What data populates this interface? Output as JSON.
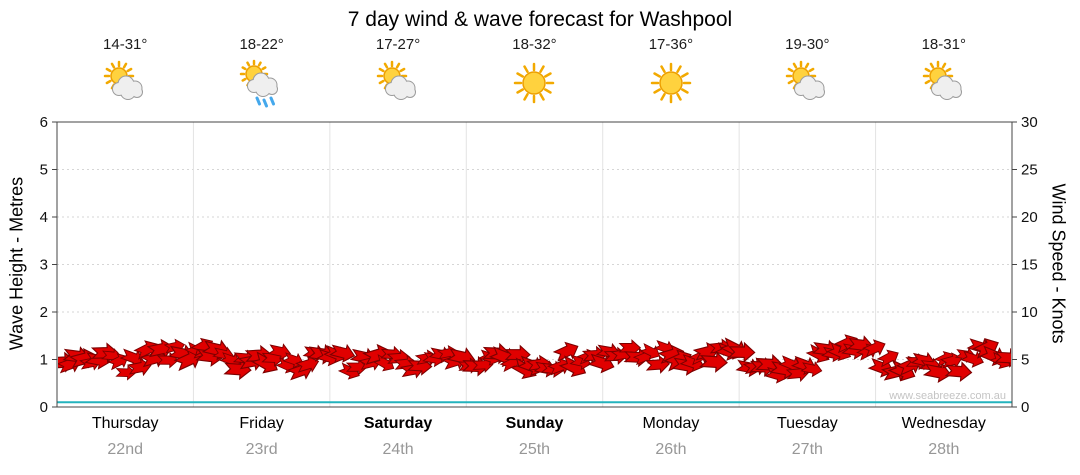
{
  "title": "7 day wind & wave forecast for Washpool",
  "watermark": "www.seabreeze.com.au",
  "axes": {
    "left_title": "Wave Height - Metres",
    "right_title": "Wind Speed - Knots",
    "left_ticks": [
      0,
      1,
      2,
      3,
      4,
      5,
      6
    ],
    "right_ticks": [
      0,
      5,
      10,
      15,
      20,
      25,
      30
    ]
  },
  "days": [
    {
      "name": "Thursday",
      "date": "22nd",
      "temp": "14-31°",
      "icon": "sun-cloud",
      "bold": false
    },
    {
      "name": "Friday",
      "date": "23rd",
      "temp": "18-22°",
      "icon": "sun-cloud-rain",
      "bold": false
    },
    {
      "name": "Saturday",
      "date": "24th",
      "temp": "17-27°",
      "icon": "sun-cloud",
      "bold": true
    },
    {
      "name": "Sunday",
      "date": "25th",
      "temp": "18-32°",
      "icon": "sun",
      "bold": true
    },
    {
      "name": "Monday",
      "date": "26th",
      "temp": "17-36°",
      "icon": "sun",
      "bold": false
    },
    {
      "name": "Tuesday",
      "date": "27th",
      "temp": "19-30°",
      "icon": "sun-cloud",
      "bold": false
    },
    {
      "name": "Wednesday",
      "date": "28th",
      "temp": "18-31°",
      "icon": "sun-cloud",
      "bold": false
    }
  ],
  "chart_data": {
    "type": "line",
    "title": "7 day wind & wave forecast for Washpool",
    "categories": [
      "Thursday 22nd",
      "Friday 23rd",
      "Saturday 24th",
      "Sunday 25th",
      "Monday 26th",
      "Tuesday 27th",
      "Wednesday 28th"
    ],
    "samples_per_day": 8,
    "y_left": {
      "label": "Wave Height - Metres",
      "range": [
        0,
        6
      ]
    },
    "y_right": {
      "label": "Wind Speed - Knots",
      "range": [
        0,
        30
      ]
    },
    "grid": true,
    "legend": "none",
    "series": [
      {
        "name": "Wind Speed",
        "unit": "knots",
        "axis": "right",
        "style": "red-wind-arrows",
        "values": [
          5.0,
          4.8,
          5.2,
          4.5,
          4.2,
          5.0,
          5.5,
          6.0,
          5.8,
          5.2,
          5.0,
          5.0,
          5.0,
          5.0,
          4.8,
          5.0,
          4.8,
          4.5,
          4.2,
          4.8,
          5.0,
          4.5,
          4.8,
          5.0,
          5.0,
          5.5,
          5.2,
          4.5,
          4.8,
          5.0,
          4.6,
          5.0,
          5.2,
          5.5,
          5.0,
          5.4,
          5.0,
          4.6,
          5.2,
          5.5,
          5.0,
          4.6,
          4.2,
          4.4,
          5.2,
          6.5,
          6.8,
          5.5,
          4.2,
          4.0,
          4.4,
          4.2,
          4.8,
          5.8,
          5.2,
          4.2
        ]
      },
      {
        "name": "Wave Height",
        "unit": "metres",
        "axis": "left",
        "style": "teal-line",
        "constant_value": 0.1
      }
    ]
  }
}
